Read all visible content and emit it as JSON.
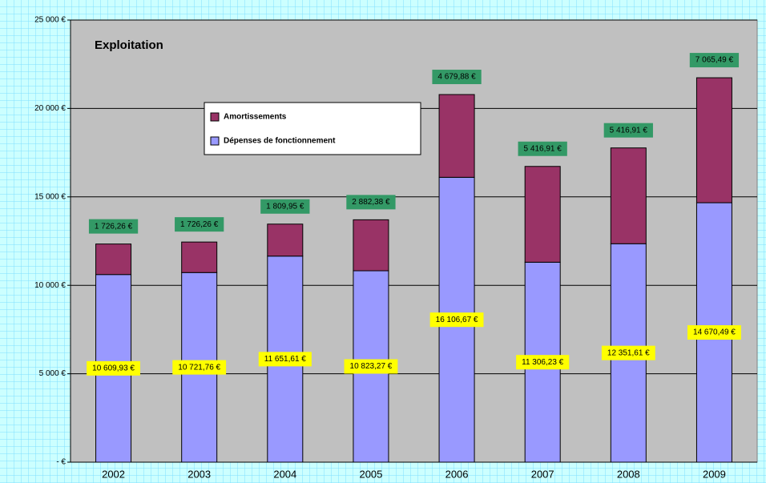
{
  "chart_data": {
    "type": "stacked_bar",
    "title": "Exploitation",
    "categories": [
      "2002",
      "2003",
      "2004",
      "2005",
      "2006",
      "2007",
      "2008",
      "2009"
    ],
    "series": [
      {
        "name": "Dépenses de fonctionnement",
        "color": "#9999ff",
        "values": [
          10609.93,
          10721.76,
          11651.61,
          10823.27,
          16106.67,
          11306.23,
          12351.61,
          14670.49
        ],
        "value_labels": [
          "10 609,93 €",
          "10 721,76 €",
          "11 651,61 €",
          "10 823,27 €",
          "16 106,67 €",
          "11 306,23 €",
          "12 351,61 €",
          "14 670,49 €"
        ]
      },
      {
        "name": "Amortissements",
        "color": "#993366",
        "values": [
          1726.26,
          1726.26,
          1809.95,
          2882.38,
          4679.88,
          5416.91,
          5416.91,
          7065.49
        ],
        "value_labels": [
          "1 726,26 €",
          "1 726,26 €",
          "1 809,95 €",
          "2 882,38 €",
          "4 679,88 €",
          "5 416,91 €",
          "5 416,91 €",
          "7 065,49 €"
        ]
      }
    ],
    "ylim": [
      0,
      25000
    ],
    "yticks": [
      {
        "value": 0,
        "label": "- €"
      },
      {
        "value": 5000,
        "label": "5 000 €"
      },
      {
        "value": 10000,
        "label": "10 000 €"
      },
      {
        "value": 15000,
        "label": "15 000 €"
      },
      {
        "value": 20000,
        "label": "20 000 €"
      },
      {
        "value": 25000,
        "label": "25 000 €"
      }
    ],
    "grid": true
  }
}
